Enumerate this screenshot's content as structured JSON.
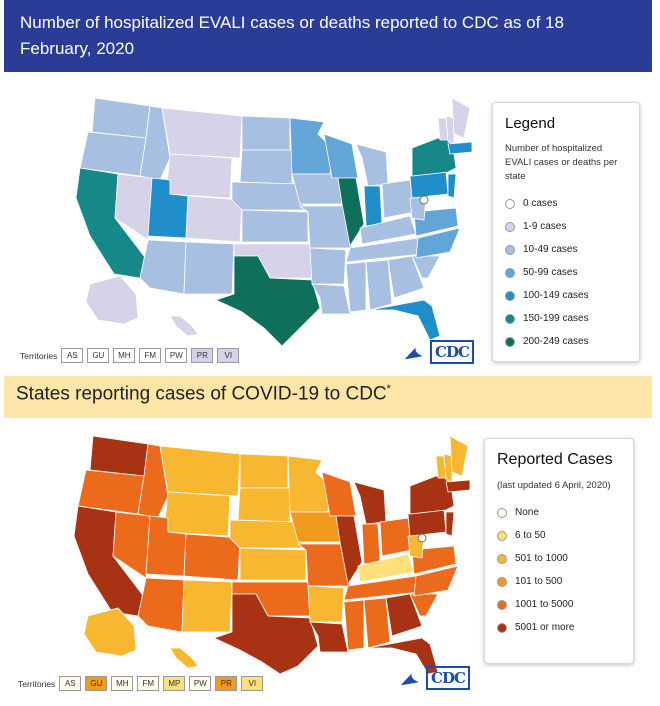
{
  "top": {
    "title": "Number of hospitalized EVALI cases or deaths reported to CDC as of 18 February, 2020",
    "legend": {
      "title": "Legend",
      "description": "Number of hospitalized EVALI cases or deaths per state",
      "items": [
        {
          "label": "0 cases",
          "color": "#ffffff"
        },
        {
          "label": "1-9 cases",
          "color": "#d6d2e8"
        },
        {
          "label": "10-49 cases",
          "color": "#a7bfe0"
        },
        {
          "label": "50-99 cases",
          "color": "#62a6d8"
        },
        {
          "label": "100-149 cases",
          "color": "#1f8ec9"
        },
        {
          "label": "150-199 cases",
          "color": "#17888a"
        },
        {
          "label": "200-249 cases",
          "color": "#0e6f5a"
        }
      ]
    },
    "territories": {
      "label": "Territories",
      "chips": [
        {
          "code": "AS",
          "color": "#ffffff"
        },
        {
          "code": "GU",
          "color": "#ffffff"
        },
        {
          "code": "MH",
          "color": "#ffffff"
        },
        {
          "code": "FM",
          "color": "#ffffff"
        },
        {
          "code": "PW",
          "color": "#ffffff"
        },
        {
          "code": "PR",
          "color": "#d6d2e8"
        },
        {
          "code": "VI",
          "color": "#d6d2e8"
        }
      ]
    },
    "logo": "CDC"
  },
  "bottom": {
    "title": "States reporting cases of COVID-19 to CDC",
    "title_mark": "*",
    "legend": {
      "title": "Reported Cases",
      "description": "(last updated 6 April, 2020)",
      "items": [
        {
          "label": "None",
          "color": "#fffbea"
        },
        {
          "label": "6 to 50",
          "color": "#fde07a"
        },
        {
          "label": "501 to 1000",
          "color": "#f7b731"
        },
        {
          "label": "101 to 500",
          "color": "#f29a1e"
        },
        {
          "label": "1001 to 5000",
          "color": "#ec6a1c"
        },
        {
          "label": "5001 or more",
          "color": "#a83214"
        }
      ]
    },
    "territories": {
      "label": "Territories",
      "chips": [
        {
          "code": "AS",
          "color": "#fffbea"
        },
        {
          "code": "GU",
          "color": "#f29a1e"
        },
        {
          "code": "MH",
          "color": "#fffbea"
        },
        {
          "code": "FM",
          "color": "#fffbea"
        },
        {
          "code": "MP",
          "color": "#fde07a"
        },
        {
          "code": "PW",
          "color": "#fffbea"
        },
        {
          "code": "PR",
          "color": "#f29a1e"
        },
        {
          "code": "VI",
          "color": "#fde07a"
        }
      ]
    },
    "logo": "CDC"
  }
}
